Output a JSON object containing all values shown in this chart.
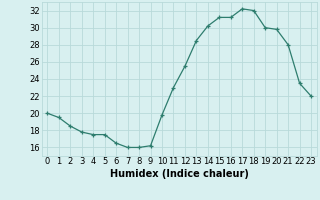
{
  "x": [
    0,
    1,
    2,
    3,
    4,
    5,
    6,
    7,
    8,
    9,
    10,
    11,
    12,
    13,
    14,
    15,
    16,
    17,
    18,
    19,
    20,
    21,
    22,
    23
  ],
  "y": [
    20.0,
    19.5,
    18.5,
    17.8,
    17.5,
    17.5,
    16.5,
    16.0,
    16.0,
    16.2,
    19.8,
    23.0,
    25.5,
    28.5,
    30.2,
    31.2,
    31.2,
    32.2,
    32.0,
    30.0,
    29.8,
    28.0,
    23.5,
    22.0
  ],
  "xlabel": "Humidex (Indice chaleur)",
  "ylim": [
    15,
    33
  ],
  "xlim": [
    -0.5,
    23.5
  ],
  "yticks": [
    16,
    18,
    20,
    22,
    24,
    26,
    28,
    30,
    32
  ],
  "xticks": [
    0,
    1,
    2,
    3,
    4,
    5,
    6,
    7,
    8,
    9,
    10,
    11,
    12,
    13,
    14,
    15,
    16,
    17,
    18,
    19,
    20,
    21,
    22,
    23
  ],
  "line_color": "#2e7d6e",
  "marker": "+",
  "bg_color": "#d8f0f0",
  "grid_color": "#b8dada",
  "xlabel_fontsize": 7,
  "tick_fontsize": 6
}
